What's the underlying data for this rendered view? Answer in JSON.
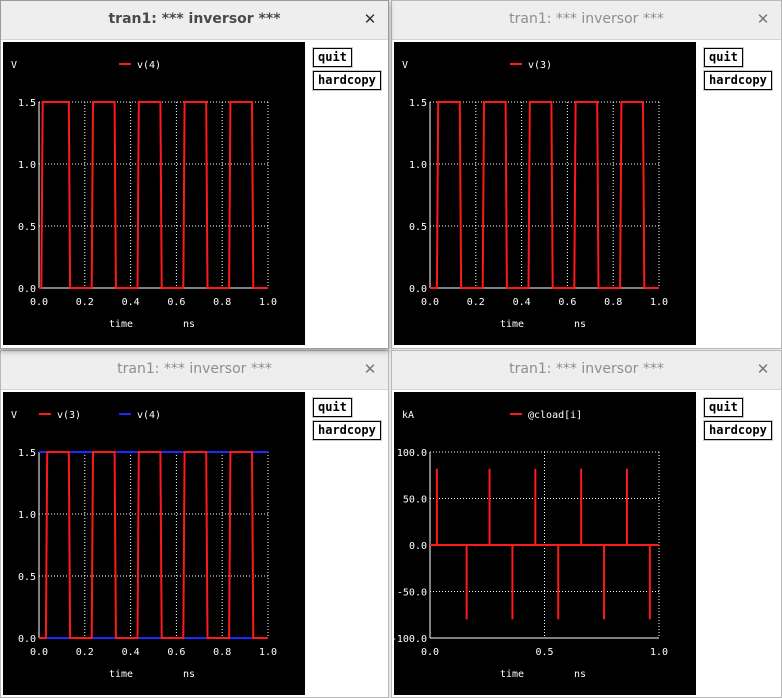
{
  "colors": {
    "red": "#ff1a1a",
    "blue": "#1c28ff",
    "grid": "#ffffff",
    "background": "#000000"
  },
  "windows": [
    {
      "title": "tran1: *** inversor ***",
      "active": true,
      "buttons": {
        "quit": "quit",
        "hardcopy": "hardcopy"
      },
      "chart_data": {
        "type": "line",
        "ylabel": "V",
        "xlabel": "time",
        "xunit": "ns",
        "xlim": [
          0,
          1.0
        ],
        "ylim": [
          0,
          1.5
        ],
        "xticks": [
          "0.0",
          "0.2",
          "0.4",
          "0.6",
          "0.8",
          "1.0"
        ],
        "yticks": [
          "0.0",
          "0.5",
          "1.0",
          "1.5"
        ],
        "legend": "top",
        "series": [
          {
            "name": "v(4)",
            "color": "#ff1a1a",
            "kind": "square",
            "high": 1.5,
            "low": 0.0,
            "edges_fall": [
              0.13,
              0.33,
              0.53,
              0.73,
              0.93
            ],
            "edges_rise": [
              0.01,
              0.23,
              0.43,
              0.63,
              0.83
            ]
          }
        ]
      }
    },
    {
      "title": "tran1: *** inversor ***",
      "active": false,
      "buttons": {
        "quit": "quit",
        "hardcopy": "hardcopy"
      },
      "chart_data": {
        "type": "line",
        "ylabel": "V",
        "xlabel": "time",
        "xunit": "ns",
        "xlim": [
          0,
          1.0
        ],
        "ylim": [
          0,
          1.5
        ],
        "xticks": [
          "0.0",
          "0.2",
          "0.4",
          "0.6",
          "0.8",
          "1.0"
        ],
        "yticks": [
          "0.0",
          "0.5",
          "1.0",
          "1.5"
        ],
        "legend": "top",
        "series": [
          {
            "name": "v(3)",
            "color": "#ff1a1a",
            "kind": "square",
            "high": 1.5,
            "low": 0.0,
            "edges_fall": [
              0.13,
              0.33,
              0.53,
              0.73,
              0.93
            ],
            "edges_rise": [
              0.03,
              0.23,
              0.43,
              0.63,
              0.83
            ]
          }
        ]
      }
    },
    {
      "title": "tran1: *** inversor ***",
      "active": false,
      "buttons": {
        "quit": "quit",
        "hardcopy": "hardcopy"
      },
      "chart_data": {
        "type": "line",
        "ylabel": "V",
        "xlabel": "time",
        "xunit": "ns",
        "xlim": [
          0,
          1.0
        ],
        "ylim": [
          0,
          1.5
        ],
        "xticks": [
          "0.0",
          "0.2",
          "0.4",
          "0.6",
          "0.8",
          "1.0"
        ],
        "yticks": [
          "0.0",
          "0.5",
          "1.0",
          "1.5"
        ],
        "legend": "top",
        "series": [
          {
            "name": "v(4)",
            "color": "#1c28ff",
            "kind": "flat",
            "values": [
              0.0,
              1.5
            ]
          },
          {
            "name": "v(3)",
            "color": "#ff1a1a",
            "kind": "square",
            "high": 1.5,
            "low": 0.0,
            "edges_fall": [
              0.13,
              0.33,
              0.53,
              0.73,
              0.93
            ],
            "edges_rise": [
              0.03,
              0.23,
              0.43,
              0.63,
              0.83
            ]
          }
        ],
        "legend_order": [
          "v(3)",
          "v(4)"
        ]
      }
    },
    {
      "title": "tran1: *** inversor ***",
      "active": false,
      "buttons": {
        "quit": "quit",
        "hardcopy": "hardcopy"
      },
      "chart_data": {
        "type": "line",
        "ylabel": "kA",
        "xlabel": "time",
        "xunit": "ns",
        "xlim": [
          0,
          1.0
        ],
        "ylim": [
          -100,
          100
        ],
        "xticks": [
          "0.0",
          "0.5",
          "1.0"
        ],
        "yticks": [
          "-100.0",
          "-50.0",
          "0.0",
          "50.0",
          "100.0"
        ],
        "legend": "top",
        "series": [
          {
            "name": "@cload[i]",
            "color": "#ff1a1a",
            "kind": "spikes",
            "spikes": [
              {
                "x": 0.03,
                "y": 82
              },
              {
                "x": 0.16,
                "y": -80
              },
              {
                "x": 0.26,
                "y": 82
              },
              {
                "x": 0.36,
                "y": -80
              },
              {
                "x": 0.46,
                "y": 82
              },
              {
                "x": 0.56,
                "y": -80
              },
              {
                "x": 0.66,
                "y": 82
              },
              {
                "x": 0.76,
                "y": -80
              },
              {
                "x": 0.86,
                "y": 82
              },
              {
                "x": 0.96,
                "y": -80
              }
            ]
          }
        ]
      }
    }
  ]
}
